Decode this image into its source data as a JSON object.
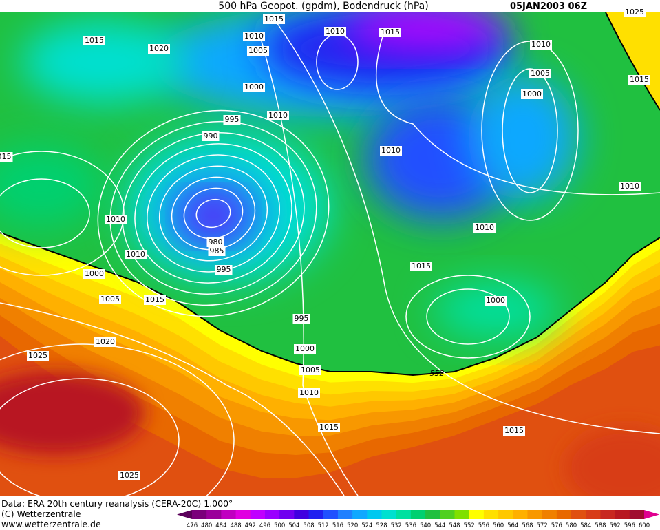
{
  "header": {
    "title": "500 hPa Geopot. (gpdm), Bodendruck (hPa)",
    "date": "05JAN2003 06Z"
  },
  "contour_labels": [
    "1025",
    "1015",
    "1010",
    "1005",
    "1010",
    "1015",
    "1015",
    "1020",
    "1010",
    "1005",
    "1000",
    "1015",
    "1000",
    "1010",
    "995",
    "990",
    "1010",
    "015",
    "1010",
    "1010",
    "1010",
    "980",
    "985",
    "1010",
    "995",
    "1015",
    "1000",
    "1005",
    "1015",
    "1000",
    "995",
    "1020",
    "1000",
    "1025",
    "1005",
    "552",
    "1010",
    "1015",
    "1015",
    "1025"
  ],
  "footer": {
    "source": "Data: ERA 20th century reanalysis (CERA-20C) 1.000°",
    "copyright": "(C) Wetterzentrale",
    "url": "www.wetterzentrale.de"
  },
  "colorbar": {
    "labels": [
      476,
      480,
      484,
      488,
      492,
      496,
      500,
      504,
      508,
      512,
      516,
      520,
      524,
      528,
      532,
      536,
      540,
      544,
      548,
      552,
      556,
      560,
      564,
      568,
      572,
      576,
      580,
      584,
      588,
      592,
      596,
      600
    ],
    "colors": [
      "#5a005a",
      "#7a007a",
      "#9a009a",
      "#c000c0",
      "#e000e0",
      "#c000ff",
      "#9a00ff",
      "#7000f0",
      "#4000e0",
      "#2020f0",
      "#2050ff",
      "#2080ff",
      "#10a8ff",
      "#00c8f0",
      "#00e0d0",
      "#00e0a0",
      "#00d070",
      "#20c040",
      "#50d020",
      "#80e000",
      "#ffff00",
      "#ffe000",
      "#ffc800",
      "#ffb000",
      "#f89800",
      "#f08000",
      "#e86800",
      "#e05010",
      "#d83c18",
      "#c82820",
      "#b81820",
      "#a00c30",
      "#e00090"
    ]
  }
}
